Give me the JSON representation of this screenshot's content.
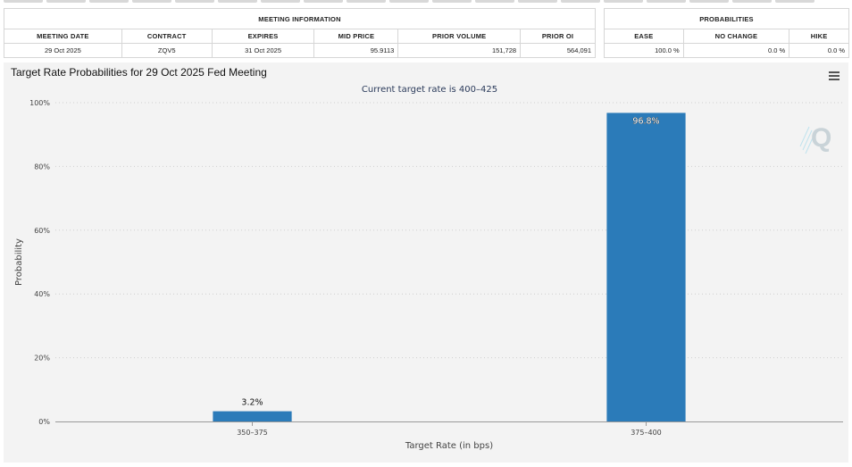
{
  "meeting_info": {
    "header": "MEETING INFORMATION",
    "columns": [
      "MEETING DATE",
      "CONTRACT",
      "EXPIRES",
      "MID PRICE",
      "PRIOR VOLUME",
      "PRIOR OI"
    ],
    "row": [
      "29 Oct 2025",
      "ZQV5",
      "31 Oct 2025",
      "95.9113",
      "151,728",
      "564,091"
    ]
  },
  "probabilities": {
    "header": "PROBABILITIES",
    "columns": [
      "EASE",
      "NO CHANGE",
      "HIKE"
    ],
    "row": [
      "100.0 %",
      "0.0 %",
      "0.0 %"
    ]
  },
  "chart_title": "Target Rate Probabilities for 29 Oct 2025 Fed Meeting",
  "logo_text": "Q",
  "colors": {
    "bar": "#2b7bb9",
    "grid": "#cfcfcf",
    "panel": "#f3f3f3"
  },
  "chart_data": {
    "type": "bar",
    "title": "Target Rate Probabilities for 29 Oct 2025 Fed Meeting",
    "subtitle": "Current target rate is 400–425",
    "categories": [
      "350–375",
      "375–400"
    ],
    "values": [
      3.2,
      96.8
    ],
    "data_labels": [
      "3.2%",
      "96.8%"
    ],
    "xlabel": "Target Rate (in bps)",
    "ylabel": "Probability",
    "ylim": [
      0,
      100
    ],
    "yticks": [
      0,
      20,
      40,
      60,
      80,
      100
    ],
    "ytick_labels": [
      "0%",
      "20%",
      "40%",
      "60%",
      "80%",
      "100%"
    ],
    "grid": true
  }
}
